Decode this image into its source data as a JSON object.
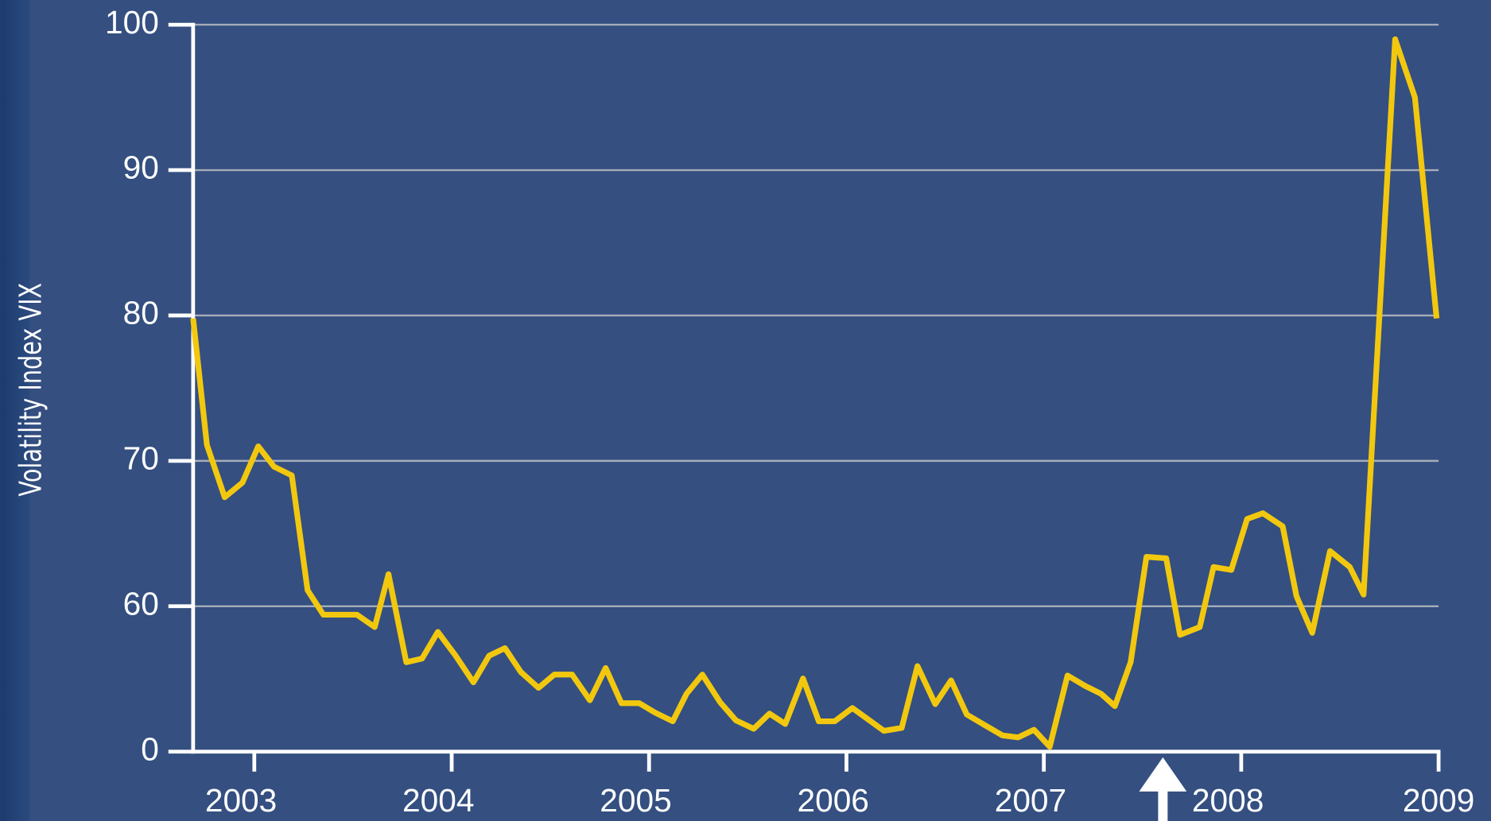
{
  "chart_data": {
    "type": "line",
    "y_label": "Volatility Index VIX",
    "x": [
      2002.69,
      2002.76,
      2002.85,
      2002.94,
      2003.02,
      2003.1,
      2003.19,
      2003.27,
      2003.35,
      2003.43,
      2003.52,
      2003.61,
      2003.68,
      2003.77,
      2003.85,
      2003.93,
      2004.02,
      2004.11,
      2004.19,
      2004.27,
      2004.35,
      2004.44,
      2004.52,
      2004.61,
      2004.7,
      2004.78,
      2004.86,
      2004.95,
      2005.03,
      2005.12,
      2005.19,
      2005.27,
      2005.36,
      2005.44,
      2005.53,
      2005.61,
      2005.69,
      2005.78,
      2005.86,
      2005.94,
      2006.03,
      2006.11,
      2006.19,
      2006.28,
      2006.36,
      2006.45,
      2006.53,
      2006.61,
      2006.7,
      2006.79,
      2006.87,
      2006.95,
      2007.03,
      2007.12,
      2007.21,
      2007.29,
      2007.36,
      2007.44,
      2007.52,
      2007.62,
      2007.69,
      2007.79,
      2007.86,
      2007.95,
      2008.03,
      2008.11,
      2008.21,
      2008.28,
      2008.36,
      2008.45,
      2008.55,
      2008.62,
      2008.78,
      2008.88,
      2008.99
    ],
    "series": [
      {
        "name": "VIX",
        "color": "#f2c80f",
        "values": [
          79.8,
          71.1,
          67.5,
          68.5,
          71.0,
          69.6,
          69.0,
          61.1,
          56.5,
          56.5,
          56.5,
          51.4,
          62.2,
          36.9,
          38.4,
          49.4,
          39.6,
          28.6,
          39.6,
          42.7,
          32.9,
          26.3,
          31.8,
          31.8,
          21.2,
          34.5,
          20.0,
          20.0,
          16.1,
          12.5,
          23.9,
          31.8,
          20.4,
          12.9,
          9.4,
          15.7,
          11.4,
          30.2,
          12.5,
          12.5,
          18.0,
          13.3,
          8.6,
          9.8,
          35.3,
          19.6,
          29.4,
          15.3,
          11.0,
          6.7,
          5.9,
          9.0,
          2.0,
          31.4,
          27.1,
          23.9,
          18.8,
          36.9,
          63.4,
          63.3,
          48.2,
          51.4,
          62.7,
          62.5,
          66.0,
          66.4,
          65.5,
          60.7,
          49.0,
          63.8,
          62.7,
          60.8,
          99.0,
          95.0,
          79.8
        ]
      }
    ],
    "xlim": [
      2002.69,
      2009.0
    ],
    "xticks": [
      2003,
      2004,
      2005,
      2006,
      2007,
      2008,
      2009
    ],
    "ylim": [
      0,
      100
    ],
    "yticks": [
      0,
      60,
      70,
      80,
      90,
      100
    ],
    "grid": true
  }
}
